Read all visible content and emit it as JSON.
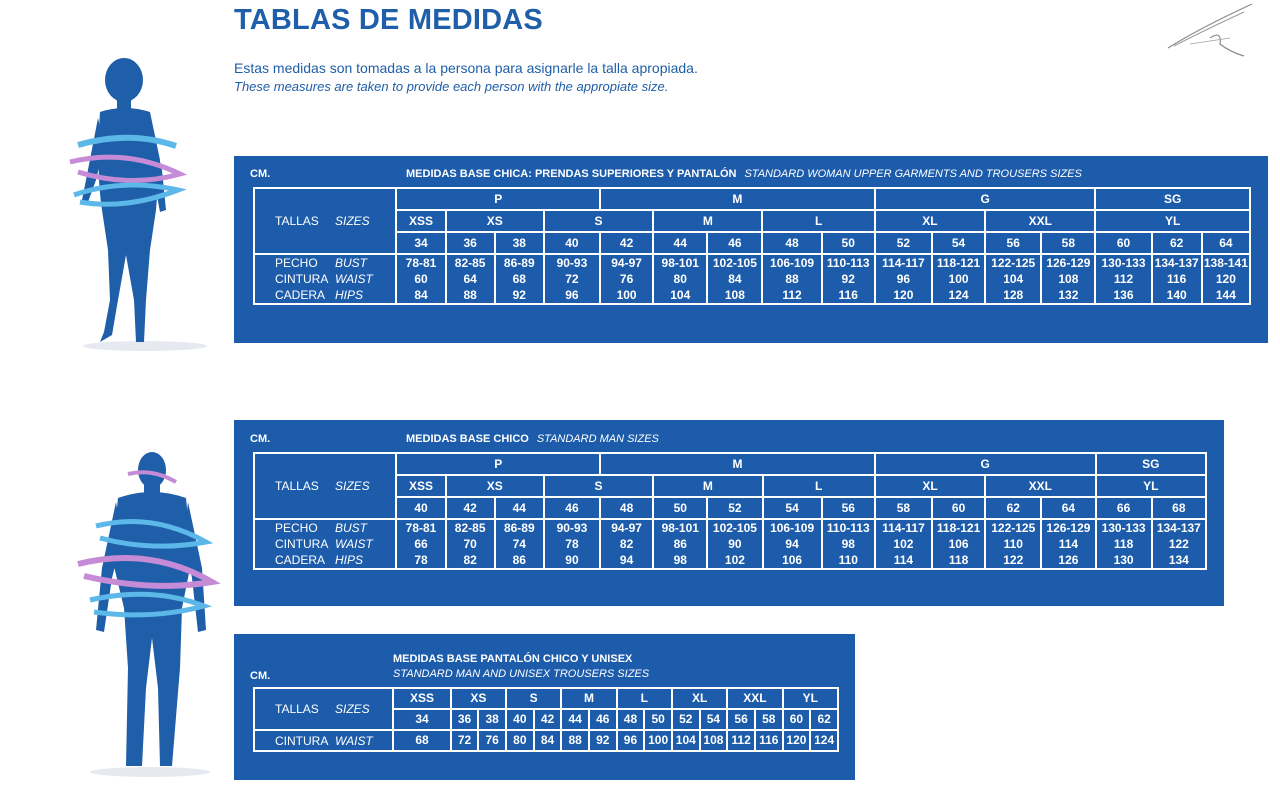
{
  "page": {
    "title": "TABLAS DE MEDIDAS",
    "subtitle_es": "Estas medidas son tomadas a la persona para asignarle la talla apropiada.",
    "subtitle_en": "These measures are taken to provide each person with the appropiate size."
  },
  "colors": {
    "brand": "#1f5ea8",
    "panel": "#1d5cab",
    "accent_band": "#c58bd6"
  },
  "icons": [
    "woman-silhouette-icon",
    "man-silhouette-icon",
    "brand-logo-icon"
  ],
  "woman": {
    "cm": "CM.",
    "title": "MEDIDAS BASE CHICA: PRENDAS SUPERIORES Y PANTALÓN",
    "title_en": "STANDARD WOMAN UPPER GARMENTS AND TROUSERS SIZES",
    "tallas": "TALLAS",
    "sizes": "SIZES",
    "pecho": "PECHO",
    "bust": "BUST",
    "cintura": "CINTURA",
    "waist": "WAIST",
    "cadera": "CADERA",
    "hips": "HIPS",
    "groups": [
      "P",
      "M",
      "G",
      "SG"
    ],
    "sizes_row": [
      "XSS",
      "XS",
      "S",
      "M",
      "L",
      "XL",
      "XXL",
      "YL"
    ],
    "numbers": [
      "34",
      "36",
      "38",
      "40",
      "42",
      "44",
      "46",
      "48",
      "50",
      "52",
      "54",
      "56",
      "58",
      "60",
      "62",
      "64"
    ],
    "chest": [
      "78-81",
      "82-85",
      "86-89",
      "90-93",
      "94-97",
      "98-101",
      "102-105",
      "106-109",
      "110-113",
      "114-117",
      "118-121",
      "122-125",
      "126-129",
      "130-133",
      "134-137",
      "138-141"
    ],
    "waist_vals": [
      "60",
      "64",
      "68",
      "72",
      "76",
      "80",
      "84",
      "88",
      "92",
      "96",
      "100",
      "104",
      "108",
      "112",
      "116",
      "120"
    ],
    "hips_vals": [
      "84",
      "88",
      "92",
      "96",
      "100",
      "104",
      "108",
      "112",
      "116",
      "120",
      "124",
      "128",
      "132",
      "136",
      "140",
      "144"
    ]
  },
  "man": {
    "cm": "CM.",
    "title": "MEDIDAS BASE CHICO",
    "title_en": "STANDARD MAN SIZES",
    "tallas": "TALLAS",
    "sizes": "SIZES",
    "pecho": "PECHO",
    "bust": "BUST",
    "cintura": "CINTURA",
    "waist": "WAIST",
    "cadera": "CADERA",
    "hips": "HIPS",
    "groups": [
      "P",
      "M",
      "G",
      "SG"
    ],
    "sizes_row": [
      "XSS",
      "XS",
      "S",
      "M",
      "L",
      "XL",
      "XXL",
      "YL"
    ],
    "numbers": [
      "40",
      "42",
      "44",
      "46",
      "48",
      "50",
      "52",
      "54",
      "56",
      "58",
      "60",
      "62",
      "64",
      "66",
      "68"
    ],
    "chest": [
      "78-81",
      "82-85",
      "86-89",
      "90-93",
      "94-97",
      "98-101",
      "102-105",
      "106-109",
      "110-113",
      "114-117",
      "118-121",
      "122-125",
      "126-129",
      "130-133",
      "134-137"
    ],
    "waist_vals": [
      "66",
      "70",
      "74",
      "78",
      "82",
      "86",
      "90",
      "94",
      "98",
      "102",
      "106",
      "110",
      "114",
      "118",
      "122"
    ],
    "hips_vals": [
      "78",
      "82",
      "86",
      "90",
      "94",
      "98",
      "102",
      "106",
      "110",
      "114",
      "118",
      "122",
      "126",
      "130",
      "134"
    ]
  },
  "trousers": {
    "cm": "CM.",
    "title": "MEDIDAS BASE PANTALÓN CHICO Y UNISEX",
    "title_en": "STANDARD MAN AND UNISEX TROUSERS SIZES",
    "tallas": "TALLAS",
    "sizes": "SIZES",
    "cintura": "CINTURA",
    "waist": "WAIST",
    "sizes_row": [
      "XSS",
      "XS",
      "S",
      "M",
      "L",
      "XL",
      "XXL",
      "YL"
    ],
    "numbers": [
      "34",
      "36",
      "38",
      "40",
      "42",
      "44",
      "46",
      "48",
      "50",
      "52",
      "54",
      "56",
      "58",
      "60",
      "62"
    ],
    "waist_vals": [
      "68",
      "72",
      "76",
      "80",
      "84",
      "88",
      "92",
      "96",
      "100",
      "104",
      "108",
      "112",
      "116",
      "120",
      "124"
    ]
  }
}
